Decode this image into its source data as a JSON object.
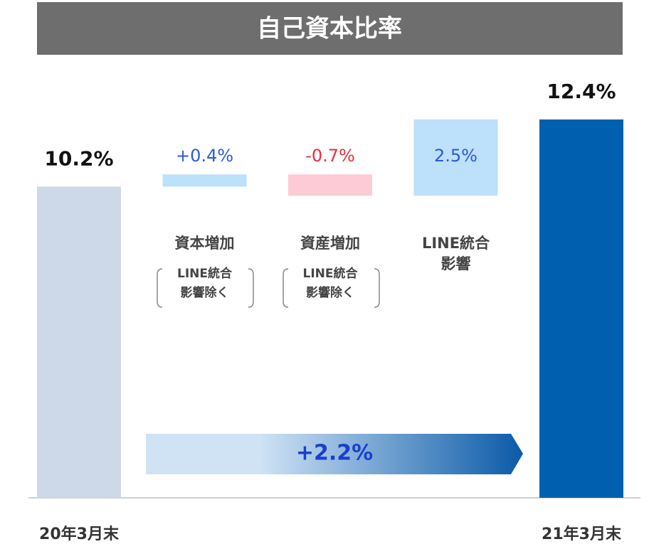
{
  "chart_data": {
    "type": "waterfall",
    "title": "自己資本比率",
    "categories": [
      "20年3月末",
      "資本増加",
      "資産増加",
      "LINE統合影響",
      "21年3月末"
    ],
    "sub_labels": [
      null,
      "LINE統合影響除く",
      "LINE統合影響除く",
      null,
      null
    ],
    "values": [
      10.2,
      0.4,
      -0.7,
      2.5,
      12.4
    ],
    "value_labels": [
      "10.2%",
      "+0.4%",
      "-0.7%",
      "2.5%",
      "12.4%"
    ],
    "measure": [
      "absolute",
      "relative",
      "relative",
      "relative",
      "total"
    ],
    "colors": [
      "#cdd8e8",
      "#bde0fb",
      "#fccbd5",
      "#bde0fb",
      "#0060b0"
    ],
    "label_colors": [
      "#111111",
      "#2a5ad6",
      "#e8303a",
      "#2a5ad6",
      "#111111"
    ],
    "ylim": [
      0,
      12.4
    ],
    "annotation": "+2.2%"
  }
}
